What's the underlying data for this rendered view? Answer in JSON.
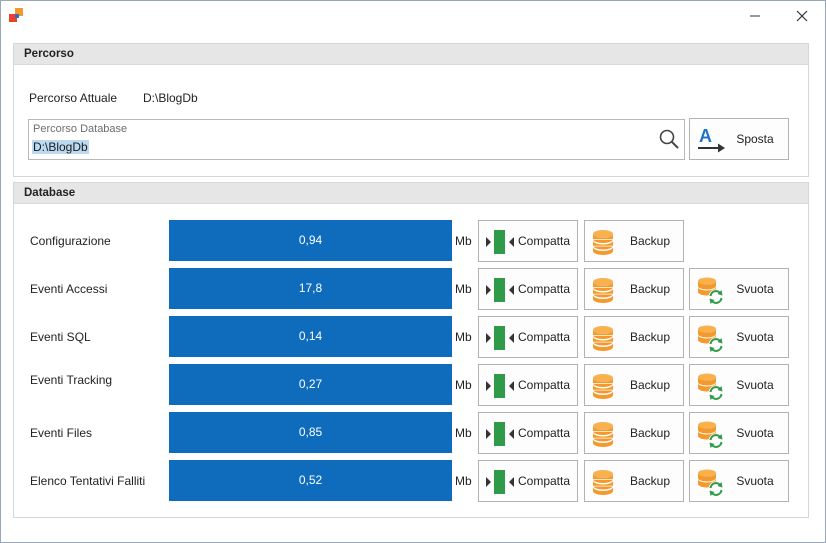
{
  "window": {
    "minimize_glyph": "—",
    "close_glyph": "✕"
  },
  "percorso": {
    "header": "Percorso",
    "current_label": "Percorso Attuale",
    "current_value": "D:\\BlogDb",
    "field_label": "Percorso Database",
    "field_value": "D:\\BlogDb",
    "move_button": "Sposta"
  },
  "database": {
    "header": "Database",
    "unit": "Mb",
    "compact_label": "Compatta",
    "backup_label": "Backup",
    "empty_label": "Svuota",
    "rows": [
      {
        "name": "Configurazione",
        "value": "0,94",
        "has_empty": false
      },
      {
        "name": "Eventi Accessi",
        "value": "17,8",
        "has_empty": true
      },
      {
        "name": "Eventi SQL",
        "value": "0,14",
        "has_empty": true
      },
      {
        "name": "Eventi Tracking",
        "value": "0,27",
        "has_empty": true
      },
      {
        "name": "Eventi Files",
        "value": "0,85",
        "has_empty": true
      },
      {
        "name": "Elenco Tentativi Falliti",
        "value": "0,52",
        "has_empty": true
      }
    ]
  },
  "colors": {
    "bar": "#0f6cbd",
    "compact_icon": "#2f9a47",
    "db_icon": "#f39a2f",
    "refresh_icon": "#2f9a47"
  }
}
